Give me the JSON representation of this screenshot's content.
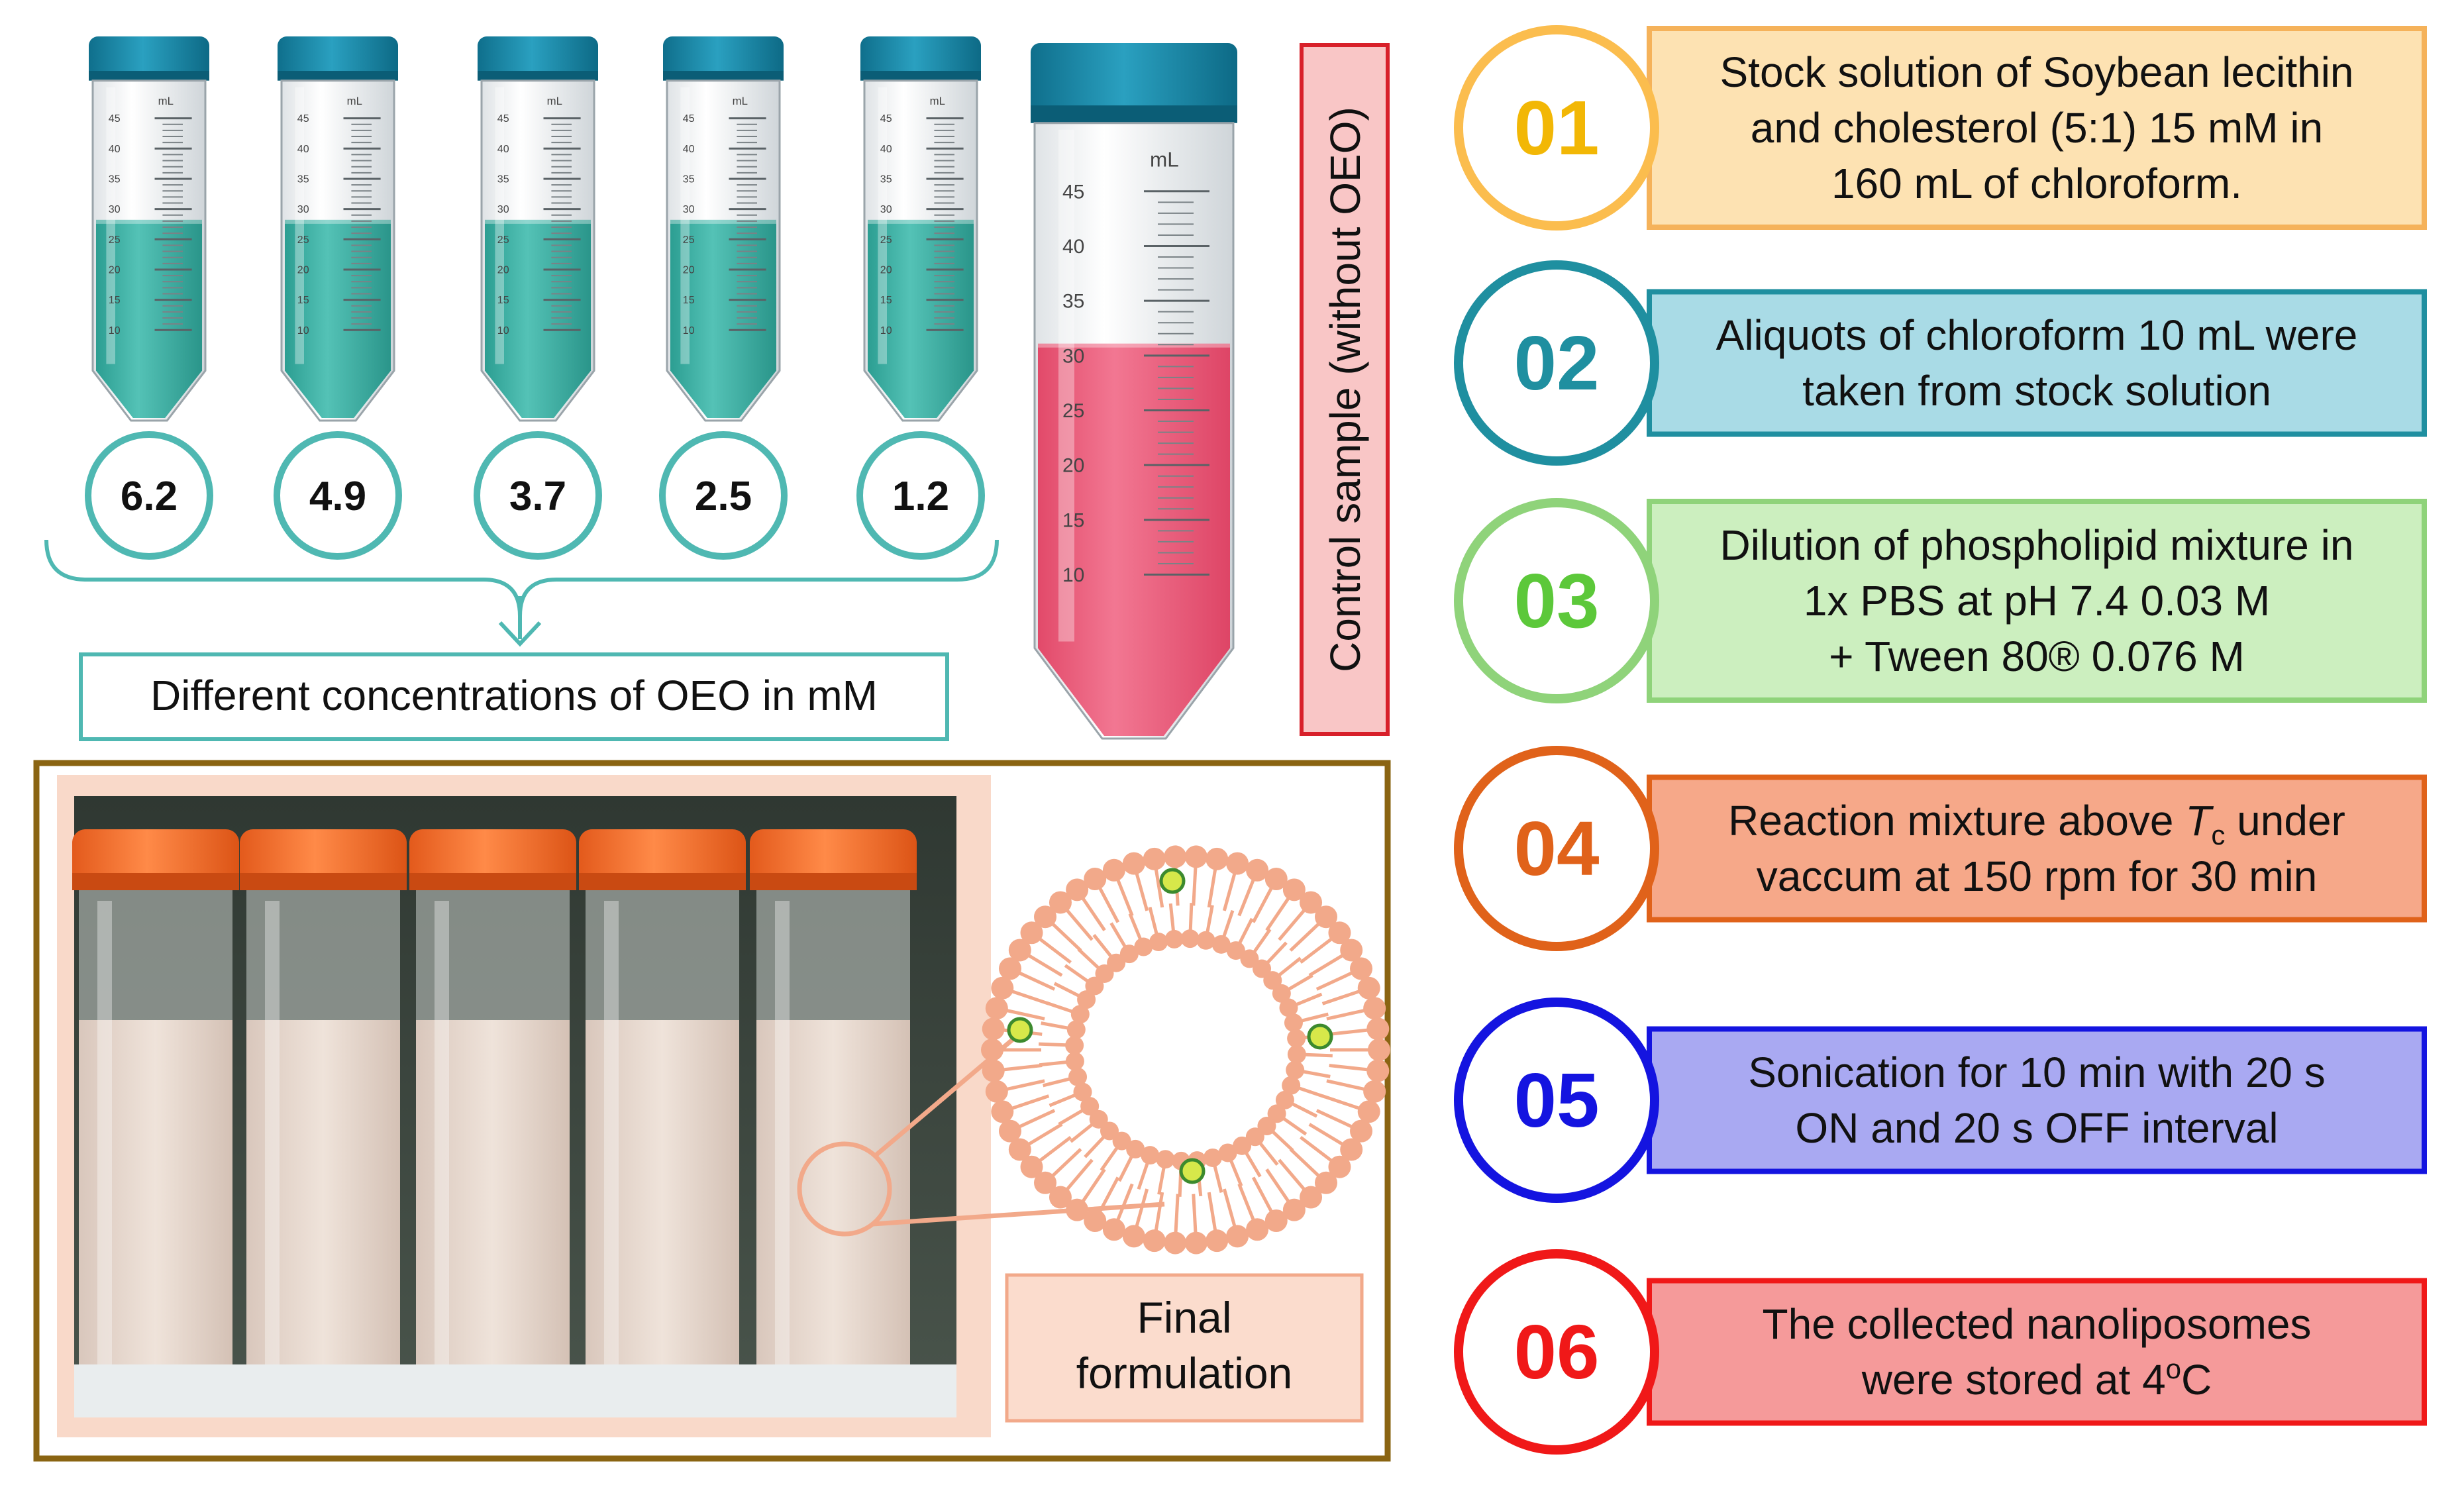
{
  "concentrations": {
    "values": [
      "6.2",
      "4.9",
      "3.7",
      "2.5",
      "1.2"
    ],
    "caption": "Different concentrations of OEO in mM"
  },
  "tube_scale": {
    "unit": "mL",
    "marks": [
      "45",
      "40",
      "35",
      "30",
      "25",
      "20",
      "15",
      "10"
    ]
  },
  "control": {
    "label": "Control sample (without OEO)"
  },
  "final": {
    "line1": "Final",
    "line2": "formulation"
  },
  "steps": [
    {
      "num": "01",
      "lines": [
        "Stock solution of Soybean lecithin",
        "and cholesterol (5:1) 15 mM in",
        "160 mL of chloroform."
      ],
      "color": "#fbbd4e",
      "num_color": "#f2b705",
      "fill": "#fde2b2",
      "border": "#f5b25a"
    },
    {
      "num": "02",
      "lines": [
        "Aliquots of chloroform 10 mL were",
        "taken from stock solution"
      ],
      "color": "#1f8fa0",
      "num_color": "#1f8fa0",
      "fill": "#a9dbe6",
      "border": "#1f8fa0"
    },
    {
      "num": "03",
      "lines": [
        "Dilution of phospholipid mixture in",
        "1x PBS at pH 7.4  0.03 M",
        "+  Tween 80® 0.076 M"
      ],
      "color": "#8fd37a",
      "num_color": "#5cc83a",
      "fill": "#ccefbf",
      "border": "#8fd37a"
    },
    {
      "num": "04",
      "lines_rich": {
        "pre": "Reaction mixture above ",
        "var": "T",
        "sub": "c",
        "post": " under"
      },
      "lines": [
        "vaccum at 150 rpm for 30 min"
      ],
      "color": "#e0621a",
      "num_color": "#e0621a",
      "fill": "#f6a889",
      "border": "#e0621a"
    },
    {
      "num": "05",
      "lines": [
        "Sonication for 10 min with 20 s",
        "ON and 20 s OFF interval"
      ],
      "color": "#1414e0",
      "num_color": "#1414e0",
      "fill": "#a9a9f2",
      "border": "#1414e0"
    },
    {
      "num": "06",
      "lines_rich6": {
        "pre": "were stored at 4",
        "sup": "o",
        "post": "C"
      },
      "lines": [
        "The collected nanoliposomes"
      ],
      "color": "#f01818",
      "num_color": "#f01818",
      "fill": "#f59a9a",
      "border": "#f01818"
    }
  ],
  "colors": {
    "teal": "#4fb8b2",
    "liquid": "#3fb0a4",
    "cap": "#1a87a6",
    "pink": "#ea5a78",
    "photo_border": "#8a6412",
    "control_box": "#d8202a",
    "cap_orange": "#f06a2a",
    "lipid": "#f2a98a"
  }
}
